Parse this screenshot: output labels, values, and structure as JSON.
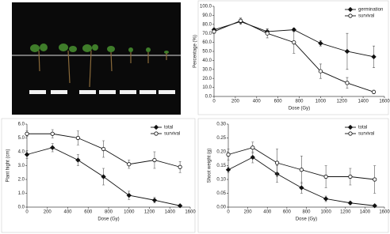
{
  "chart_data": [
    {
      "type": "line",
      "x_label": "Dose (Gy)",
      "y_label": "Percentage (%)",
      "x": [
        0,
        250,
        500,
        750,
        1000,
        1250,
        1500
      ],
      "xlim": [
        0,
        1600
      ],
      "xticks": [
        0,
        200,
        400,
        600,
        800,
        1000,
        1200,
        1400,
        1600
      ],
      "ylim": [
        0,
        100
      ],
      "yticks": [
        {
          "value": 0,
          "label": "0.0"
        },
        {
          "value": 10,
          "label": "10.0"
        },
        {
          "value": 20,
          "label": "20.0"
        },
        {
          "value": 30,
          "label": "30.0"
        },
        {
          "value": 40,
          "label": "40.0"
        },
        {
          "value": 50,
          "label": "50.0"
        },
        {
          "value": 60,
          "label": "60.0"
        },
        {
          "value": 70,
          "label": "70.0"
        },
        {
          "value": 80,
          "label": "80.0"
        },
        {
          "value": 90,
          "label": "90.0"
        },
        {
          "value": 100,
          "label": "100.0"
        }
      ],
      "series": [
        {
          "name": "germination",
          "color": "#111111",
          "marker": "diamond",
          "filled": true,
          "values": [
            74,
            83,
            72,
            74,
            59,
            50,
            44
          ],
          "errors": [
            2,
            3,
            3,
            2,
            3,
            20,
            12
          ]
        },
        {
          "name": "survival",
          "color": "#111111",
          "marker": "circle",
          "filled": false,
          "values": [
            72,
            84,
            70,
            60,
            28,
            15,
            5
          ],
          "errors": [
            2,
            3,
            5,
            12,
            8,
            6,
            2
          ]
        }
      ]
    },
    {
      "type": "line",
      "x_label": "Dose (Gy)",
      "y_label": "Plant hight (cm)",
      "x": [
        0,
        250,
        500,
        750,
        1000,
        1250,
        1500
      ],
      "xlim": [
        0,
        1600
      ],
      "xticks": [
        0,
        200,
        400,
        600,
        800,
        1000,
        1200,
        1400,
        1600
      ],
      "ylim": [
        0,
        6
      ],
      "yticks": [
        {
          "value": 0,
          "label": "0.0"
        },
        {
          "value": 1,
          "label": "1.0"
        },
        {
          "value": 2,
          "label": "2.0"
        },
        {
          "value": 3,
          "label": "3.0"
        },
        {
          "value": 4,
          "label": "4.0"
        },
        {
          "value": 5,
          "label": "5.0"
        },
        {
          "value": 6,
          "label": "6.0"
        }
      ],
      "series": [
        {
          "name": "total",
          "color": "#111111",
          "marker": "diamond",
          "filled": true,
          "values": [
            3.8,
            4.3,
            3.4,
            2.2,
            0.85,
            0.5,
            0.1
          ],
          "errors": [
            0.3,
            0.3,
            0.4,
            0.6,
            0.3,
            0.2,
            0.05
          ]
        },
        {
          "name": "survival",
          "color": "#111111",
          "marker": "circle",
          "filled": false,
          "values": [
            5.3,
            5.3,
            5.0,
            4.2,
            3.1,
            3.4,
            2.9
          ],
          "errors": [
            0.2,
            0.3,
            0.5,
            0.6,
            0.3,
            0.6,
            0.4
          ]
        }
      ]
    },
    {
      "type": "line",
      "x_label": "Dose (Gy)",
      "y_label": "Shoot weight (g)",
      "x": [
        0,
        250,
        500,
        750,
        1000,
        1250,
        1500
      ],
      "xlim": [
        0,
        1600
      ],
      "xticks": [
        0,
        200,
        400,
        600,
        800,
        1000,
        1200,
        1400,
        1600
      ],
      "ylim": [
        0,
        0.3
      ],
      "yticks": [
        {
          "value": 0,
          "label": "0.00"
        },
        {
          "value": 0.05,
          "label": "0.05"
        },
        {
          "value": 0.1,
          "label": "0.10"
        },
        {
          "value": 0.15,
          "label": "0.15"
        },
        {
          "value": 0.2,
          "label": "0.20"
        },
        {
          "value": 0.25,
          "label": "0.25"
        },
        {
          "value": 0.3,
          "label": "0.30"
        }
      ],
      "series": [
        {
          "name": "total",
          "color": "#111111",
          "marker": "diamond",
          "filled": true,
          "values": [
            0.135,
            0.18,
            0.12,
            0.07,
            0.03,
            0.015,
            0.005
          ],
          "errors": [
            0.01,
            0.02,
            0.03,
            0.02,
            0.01,
            0.005,
            0.003
          ]
        },
        {
          "name": "survival",
          "color": "#111111",
          "marker": "circle",
          "filled": false,
          "values": [
            0.19,
            0.215,
            0.16,
            0.135,
            0.11,
            0.11,
            0.1
          ],
          "errors": [
            0.02,
            0.02,
            0.05,
            0.05,
            0.04,
            0.03,
            0.05
          ]
        }
      ]
    }
  ]
}
